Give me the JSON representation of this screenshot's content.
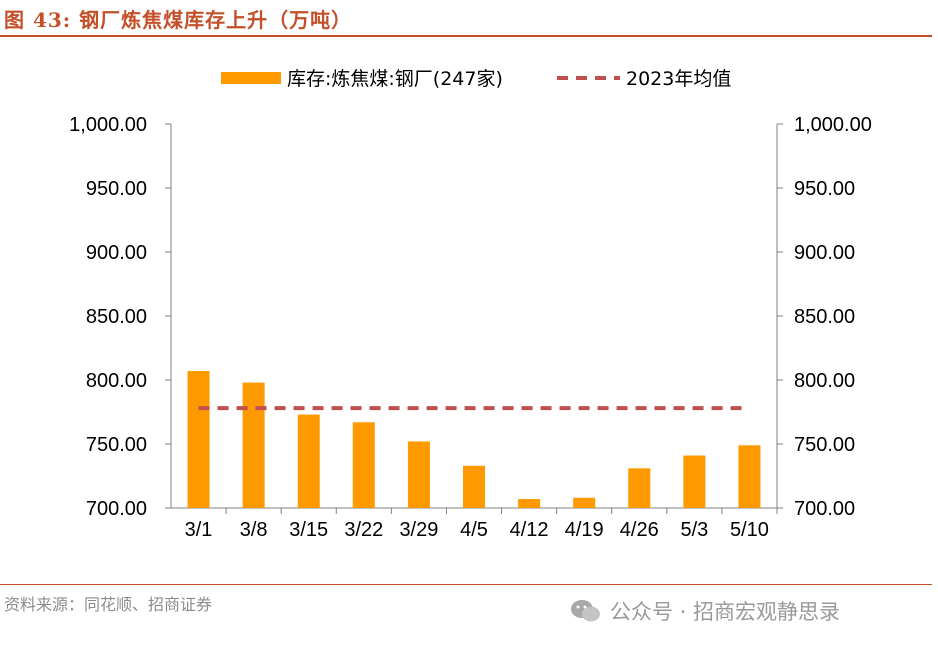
{
  "header": {
    "title": "图 43:  钢厂炼焦煤库存上升（万吨）"
  },
  "footer": {
    "source": "资料来源：同花顺、招商证券",
    "watermark": "公众号 · 招商宏观静思录"
  },
  "chart_data": {
    "type": "bar",
    "categories": [
      "3/1",
      "3/8",
      "3/15",
      "3/22",
      "3/29",
      "4/5",
      "4/12",
      "4/19",
      "4/26",
      "5/3",
      "5/10"
    ],
    "series": [
      {
        "name": "库存:炼焦煤:钢厂(247家)",
        "type": "bar",
        "color": "#ff9900",
        "values": [
          807,
          798,
          773,
          767,
          752,
          733,
          707,
          708,
          731,
          741,
          749
        ]
      },
      {
        "name": "2023年均值",
        "type": "line",
        "style": "dashed",
        "color": "#c0504d",
        "values": [
          778,
          778,
          778,
          778,
          778,
          778,
          778,
          778,
          778,
          778,
          778
        ]
      }
    ],
    "ylim": [
      700,
      1000
    ],
    "yticks": [
      "1,000.00",
      "950.00",
      "900.00",
      "850.00",
      "800.00",
      "750.00",
      "700.00"
    ],
    "secondary_yticks": [
      "1,000.00",
      "950.00",
      "900.00",
      "850.00",
      "800.00",
      "750.00",
      "700.00"
    ],
    "legend_position": "top",
    "grid": false
  }
}
